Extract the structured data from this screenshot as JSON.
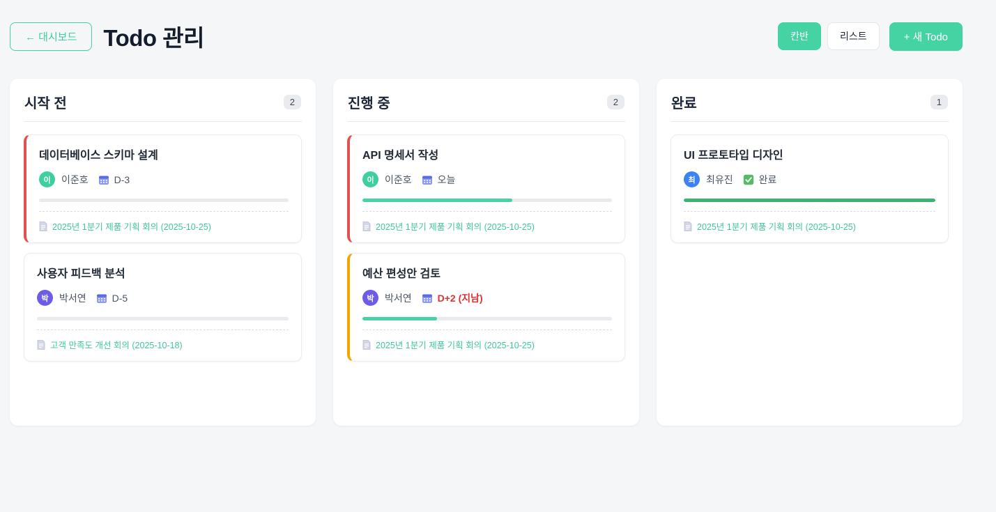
{
  "header": {
    "back_button": "← 대시보드",
    "title": "Todo 관리",
    "view_toggle": [
      {
        "label": "칸반",
        "active": true
      },
      {
        "label": "리스트",
        "active": false
      }
    ],
    "new_todo_button": "+ 새 Todo"
  },
  "colors": {
    "accent_green": "#45d3a4",
    "progress_in_progress": "#45d3a4",
    "progress_done": "#3cb371",
    "urgent_border_red": "#e05252",
    "warning_border_orange": "#f0a500",
    "overdue_text_red": "#e03131",
    "memo_text_green": "#3ec99a",
    "avatar_green": "#3ecf9e",
    "avatar_indigo": "#6c5ce7",
    "avatar_blue": "#3b82f6"
  },
  "board": {
    "columns": [
      {
        "title": "시작 전",
        "count": "2",
        "cards": [
          {
            "title": "데이터베이스 스키마 설계",
            "assignee_initial": "이",
            "assignee_name": "이준호",
            "avatar_color": "#3ecf9e",
            "deadline": "D-3",
            "overdue": false,
            "done": false,
            "progress_percent": 0,
            "progress_color": "#45d3a4",
            "border_color": "#e05252",
            "memo": "2025년 1분기 제품 기획 회의 (2025-10-25)"
          },
          {
            "title": "사용자 피드백 분석",
            "assignee_initial": "박",
            "assignee_name": "박서연",
            "avatar_color": "#6c5ce7",
            "deadline": "D-5",
            "overdue": false,
            "done": false,
            "progress_percent": 0,
            "progress_color": "#45d3a4",
            "border_color": "",
            "memo": "고객 만족도 개선 회의 (2025-10-18)"
          }
        ]
      },
      {
        "title": "진행 중",
        "count": "2",
        "cards": [
          {
            "title": "API 명세서 작성",
            "assignee_initial": "이",
            "assignee_name": "이준호",
            "avatar_color": "#3ecf9e",
            "deadline": "오늘",
            "overdue": false,
            "done": false,
            "progress_percent": 60,
            "progress_color": "#45d3a4",
            "border_color": "#e05252",
            "memo": "2025년 1분기 제품 기획 회의 (2025-10-25)"
          },
          {
            "title": "예산 편성안 검토",
            "assignee_initial": "박",
            "assignee_name": "박서연",
            "avatar_color": "#6c5ce7",
            "deadline": "D+2 (지남)",
            "overdue": true,
            "done": false,
            "progress_percent": 30,
            "progress_color": "#45d3a4",
            "border_color": "#f0a500",
            "memo": "2025년 1분기 제품 기획 회의 (2025-10-25)"
          }
        ]
      },
      {
        "title": "완료",
        "count": "1",
        "cards": [
          {
            "title": "UI 프로토타입 디자인",
            "assignee_initial": "최",
            "assignee_name": "최유진",
            "avatar_color": "#3b82f6",
            "deadline": "완료",
            "overdue": false,
            "done": true,
            "progress_percent": 100,
            "progress_color": "#3cb371",
            "border_color": "",
            "memo": "2025년 1분기 제품 기획 회의 (2025-10-25)"
          }
        ]
      }
    ]
  }
}
